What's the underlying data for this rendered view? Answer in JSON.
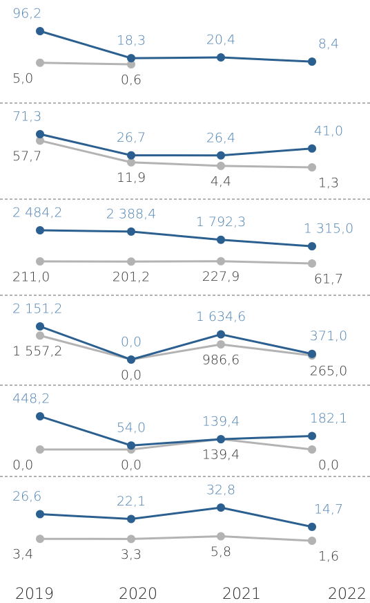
{
  "chart_data": {
    "type": "line",
    "categories": [
      "2019",
      "2020",
      "2021",
      "2022"
    ],
    "panels": [
      {
        "series": [
          {
            "color": "#2a5f8f",
            "values": [
              96.2,
              18.3,
              20.4,
              8.4
            ],
            "value_labels": [
              "96,2",
              "18,3",
              "20,4",
              "8,4"
            ]
          },
          {
            "color": "#b3b3b3",
            "values": [
              5.0,
              0.6,
              null,
              null
            ],
            "value_labels": [
              "5,0",
              "0,6",
              null,
              null
            ]
          }
        ]
      },
      {
        "series": [
          {
            "color": "#2a5f8f",
            "values": [
              71.3,
              26.7,
              26.4,
              41.0
            ],
            "value_labels": [
              "71,3",
              "26,7",
              "26,4",
              "41,0"
            ]
          },
          {
            "color": "#b3b3b3",
            "values": [
              57.7,
              11.9,
              4.4,
              1.3
            ],
            "value_labels": [
              "57,7",
              "11,9",
              "4,4",
              "1,3"
            ]
          }
        ]
      },
      {
        "series": [
          {
            "color": "#2a5f8f",
            "values": [
              2484.2,
              2388.4,
              1792.3,
              1315.0
            ],
            "value_labels": [
              "2 484,2",
              "2 388,4",
              "1 792,3",
              "1 315,0"
            ]
          },
          {
            "color": "#b3b3b3",
            "values": [
              211.0,
              201.2,
              227.9,
              61.7
            ],
            "value_labels": [
              "211,0",
              "201,2",
              "227,9",
              "61,7"
            ]
          }
        ]
      },
      {
        "series": [
          {
            "color": "#2a5f8f",
            "values": [
              2151.2,
              0.0,
              1634.6,
              371.0
            ],
            "value_labels": [
              "2 151,2",
              "0,0",
              "1 634,6",
              "371,0"
            ]
          },
          {
            "color": "#b3b3b3",
            "values": [
              1557.2,
              0.0,
              986.6,
              265.0
            ],
            "value_labels": [
              "1 557,2",
              "0,0",
              "986,6",
              "265,0"
            ]
          }
        ]
      },
      {
        "series": [
          {
            "color": "#2a5f8f",
            "values": [
              448.2,
              54.0,
              139.4,
              182.1
            ],
            "value_labels": [
              "448,2",
              "54,0",
              "139,4",
              "182,1"
            ]
          },
          {
            "color": "#b3b3b3",
            "values": [
              0.0,
              0.0,
              139.4,
              0.0
            ],
            "value_labels": [
              "0,0",
              "0,0",
              "139,4",
              "0,0"
            ]
          }
        ]
      },
      {
        "series": [
          {
            "color": "#2a5f8f",
            "values": [
              26.6,
              22.1,
              32.8,
              14.7
            ],
            "value_labels": [
              "26,6",
              "22,1",
              "32,8",
              "14,7"
            ]
          },
          {
            "color": "#b3b3b3",
            "values": [
              3.4,
              3.3,
              5.8,
              1.6
            ],
            "value_labels": [
              "3,4",
              "3,3",
              "5,8",
              "1,6"
            ]
          }
        ]
      }
    ]
  }
}
